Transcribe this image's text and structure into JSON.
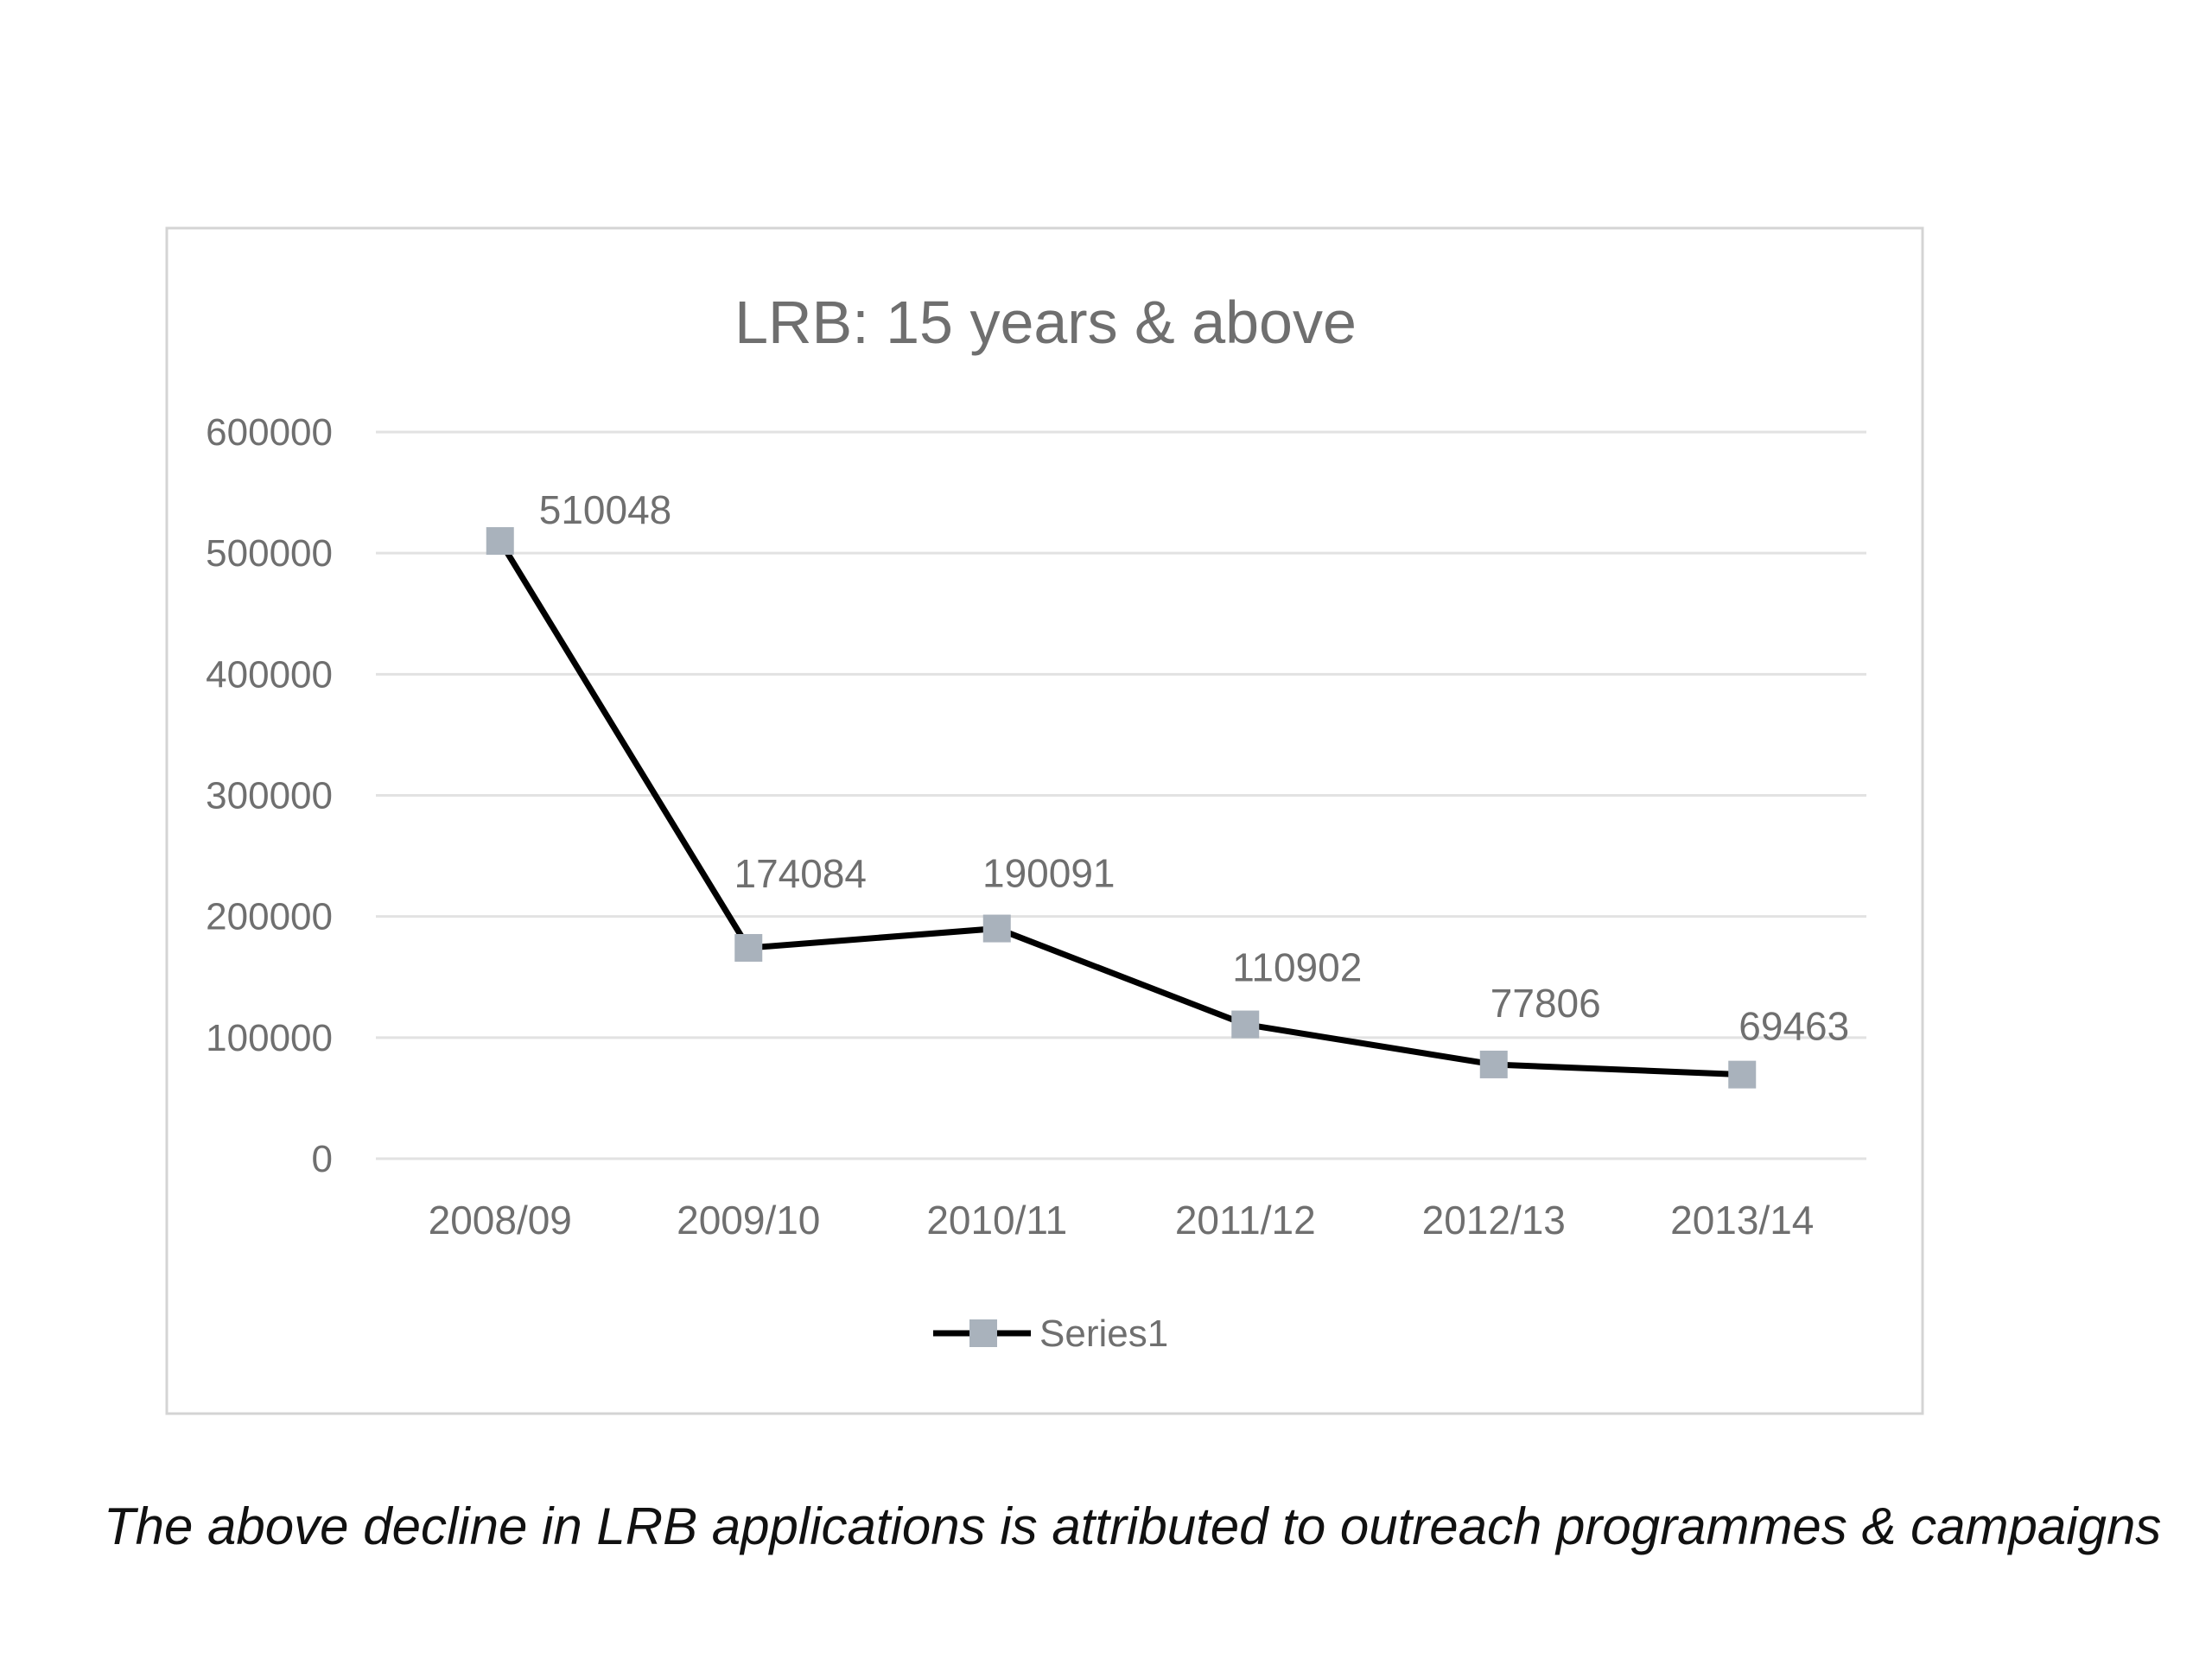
{
  "chart_data": {
    "type": "line",
    "title": "LRB: 15 years & above",
    "categories": [
      "2008/09",
      "2009/10",
      "2010/11",
      "2011/12",
      "2012/13",
      "2013/14"
    ],
    "series": [
      {
        "name": "Series1",
        "values": [
          510048,
          174084,
          190091,
          110902,
          77806,
          69463
        ]
      }
    ],
    "data_labels": [
      "510048",
      "174084",
      "190091",
      "110902",
      "77806",
      "69463"
    ],
    "y_ticks": [
      "0",
      "100000",
      "200000",
      "300000",
      "400000",
      "500000",
      "600000"
    ],
    "ylim": [
      0,
      600000
    ],
    "grid": true,
    "legend": "bottom-center",
    "colors": {
      "line": "#000000",
      "marker": "#a9b2bc",
      "grid": "#e2e2e2",
      "frame": "#d4d4d4",
      "text": "#6f6f6f"
    }
  },
  "caption": "The above decline in LRB applications is attributed to outreach programmes & campaigns"
}
